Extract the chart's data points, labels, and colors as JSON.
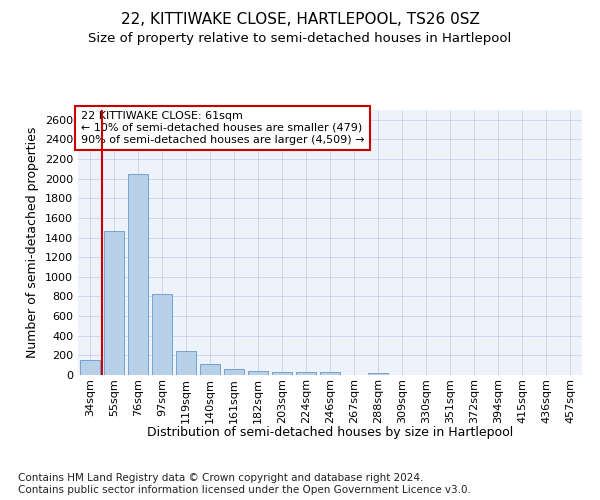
{
  "title": "22, KITTIWAKE CLOSE, HARTLEPOOL, TS26 0SZ",
  "subtitle": "Size of property relative to semi-detached houses in Hartlepool",
  "xlabel": "Distribution of semi-detached houses by size in Hartlepool",
  "ylabel": "Number of semi-detached properties",
  "categories": [
    "34sqm",
    "55sqm",
    "76sqm",
    "97sqm",
    "119sqm",
    "140sqm",
    "161sqm",
    "182sqm",
    "203sqm",
    "224sqm",
    "246sqm",
    "267sqm",
    "288sqm",
    "309sqm",
    "330sqm",
    "351sqm",
    "372sqm",
    "394sqm",
    "415sqm",
    "436sqm",
    "457sqm"
  ],
  "values": [
    150,
    1470,
    2050,
    830,
    245,
    110,
    65,
    40,
    30,
    30,
    30,
    0,
    20,
    0,
    0,
    0,
    0,
    0,
    0,
    0,
    0
  ],
  "bar_color": "#b8cfe8",
  "bar_edge_color": "#6699cc",
  "grid_color": "#ccd8ee",
  "background_color": "#eef2fa",
  "annotation_text": "22 KITTIWAKE CLOSE: 61sqm\n← 10% of semi-detached houses are smaller (479)\n90% of semi-detached houses are larger (4,509) →",
  "annotation_box_color": "#ffffff",
  "annotation_box_edge": "#cc0000",
  "vline_color": "#cc0000",
  "vline_x": 0.5,
  "ylim": [
    0,
    2700
  ],
  "yticks": [
    0,
    200,
    400,
    600,
    800,
    1000,
    1200,
    1400,
    1600,
    1800,
    2000,
    2200,
    2400,
    2600
  ],
  "footer": "Contains HM Land Registry data © Crown copyright and database right 2024.\nContains public sector information licensed under the Open Government Licence v3.0.",
  "title_fontsize": 11,
  "subtitle_fontsize": 9.5,
  "axis_label_fontsize": 9,
  "tick_fontsize": 8,
  "annotation_fontsize": 8,
  "footer_fontsize": 7.5
}
